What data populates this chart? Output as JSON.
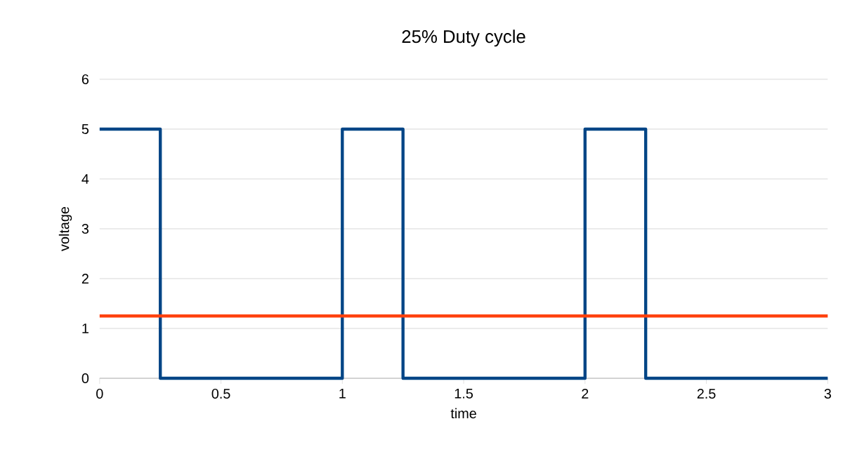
{
  "chart_data": {
    "type": "line",
    "title": "25% Duty cycle",
    "xlabel": "time",
    "ylabel": "voltage",
    "series": [
      {
        "color": "#004586",
        "x": [
          0,
          0.25,
          0.25,
          1,
          1,
          1.25,
          1.25,
          2,
          2,
          2.25,
          2.25,
          3
        ],
        "values": [
          5,
          5,
          0,
          0,
          5,
          5,
          0,
          0,
          5,
          5,
          0,
          0
        ]
      },
      {
        "color": "#ff420e",
        "x": [
          0,
          3
        ],
        "values": [
          1.25,
          1.25
        ]
      }
    ],
    "xlim": [
      0,
      3
    ],
    "ylim": [
      0,
      6
    ],
    "xticks": [
      0,
      0.5,
      1,
      1.5,
      2,
      2.5,
      3
    ],
    "yticks": [
      0,
      1,
      2,
      3,
      4,
      5,
      6
    ],
    "grid": "y"
  }
}
